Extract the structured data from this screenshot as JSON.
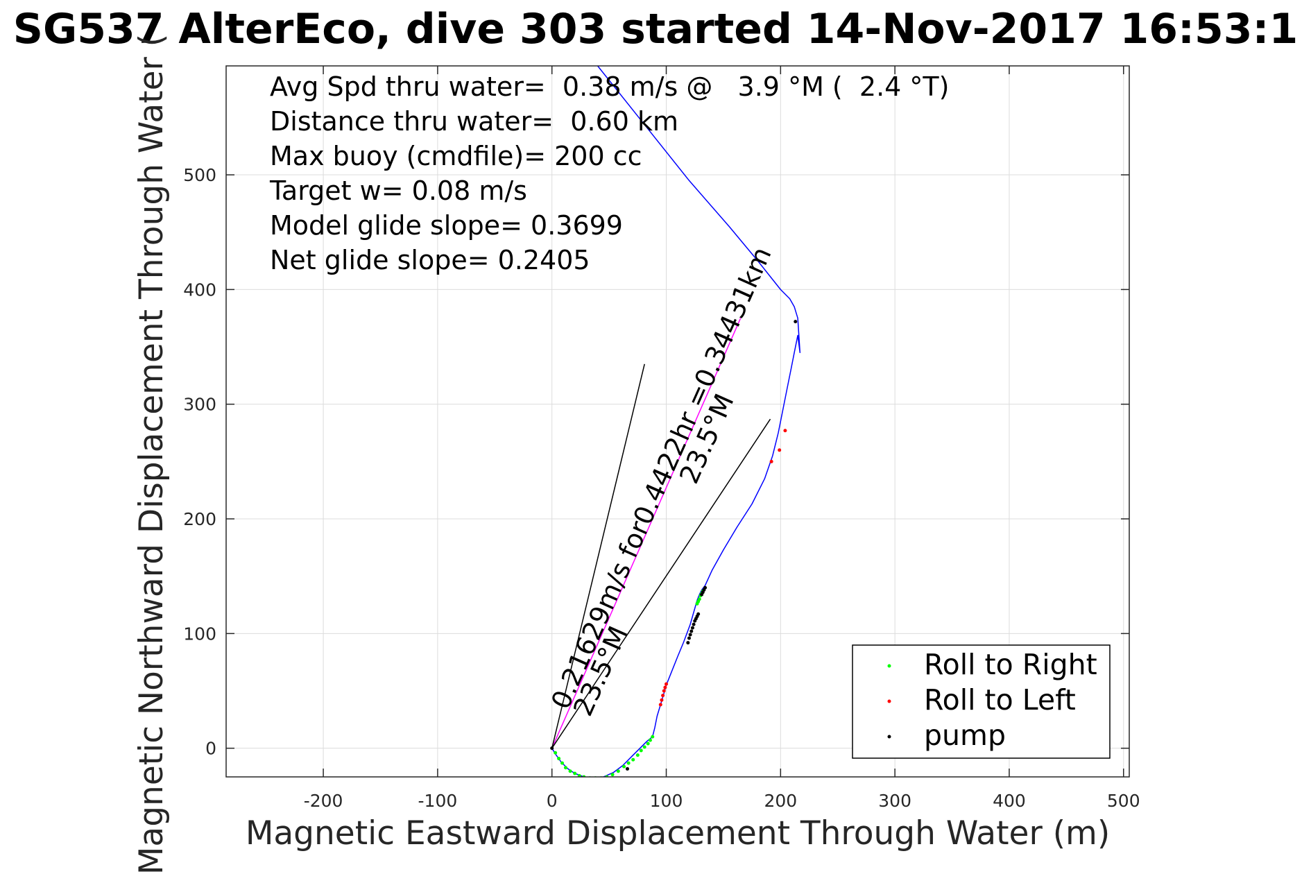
{
  "chart_data": {
    "type": "line",
    "title": "SG537 AlterEco, dive 303 started 14-Nov-2017 16:53:1",
    "xlabel": "Magnetic Eastward Displacement Through Water (m)",
    "ylabel": "Magnetic Northward Displacement Through Water (",
    "xlim": [
      -285,
      505
    ],
    "ylim": [
      -25,
      595
    ],
    "grid": true,
    "x_ticks": [
      "-200",
      "-100",
      "0",
      "100",
      "200",
      "300",
      "400",
      "500"
    ],
    "y_ticks": [
      "0",
      "100",
      "200",
      "300",
      "400",
      "500"
    ],
    "info_lines": [
      "Avg Spd thru water=  0.38 m/s @   3.9 °M (  2.4 °T)",
      "Distance thru water=  0.60 km",
      "Max buoy (cmdfile)= 200 cc",
      "Target w= 0.08 m/s",
      "Model glide slope= 0.3699",
      "Net glide slope= 0.2405"
    ],
    "annotations": [
      "0.21629m/s for0.4422hr =0.34431km",
      "23.5°M",
      "23.5°M"
    ],
    "track": {
      "color": "#0000ff",
      "x": [
        0,
        3,
        8,
        14,
        20,
        28,
        36,
        45,
        54,
        62,
        70,
        77,
        83,
        88,
        90,
        92,
        95,
        98,
        100,
        104,
        110,
        115,
        118,
        121,
        123,
        125,
        127,
        129,
        131,
        134,
        140,
        150,
        162,
        175,
        186,
        193,
        198,
        202,
        206,
        209,
        212,
        215,
        217,
        215,
        212,
        208,
        200,
        180,
        155,
        120,
        80,
        40
      ],
      "y": [
        0,
        -5,
        -12,
        -18,
        -22,
        -25,
        -26,
        -25,
        -21,
        -15,
        -7,
        0,
        6,
        10,
        18,
        28,
        38,
        48,
        55,
        65,
        80,
        92,
        100,
        108,
        115,
        122,
        129,
        134,
        138,
        142,
        155,
        173,
        193,
        213,
        235,
        255,
        275,
        295,
        315,
        330,
        345,
        360,
        345,
        375,
        385,
        392,
        400,
        425,
        455,
        495,
        545,
        595
      ]
    },
    "series": [
      {
        "name": "Roll to Right",
        "color": "#00ff00",
        "x": [
          3,
          6,
          9,
          12,
          16,
          20,
          24,
          28,
          33,
          38,
          43,
          48,
          53,
          58,
          63,
          67,
          71,
          75,
          78,
          81,
          84,
          86,
          88,
          127,
          128,
          129,
          130,
          131,
          132
        ],
        "y": [
          -4,
          -9,
          -13,
          -17,
          -20,
          -22,
          -24,
          -25,
          -26,
          -26,
          -26,
          -25,
          -23,
          -20,
          -16,
          -13,
          -10,
          -6,
          -2,
          1,
          4,
          7,
          10,
          126,
          128,
          130,
          133,
          135,
          137
        ]
      },
      {
        "name": "Roll to Left",
        "color": "#ff0000",
        "x": [
          95,
          96,
          97,
          98,
          99,
          100,
          192,
          199,
          204
        ],
        "y": [
          38,
          42,
          46,
          50,
          53,
          56,
          250,
          260,
          277
        ]
      },
      {
        "name": "pump",
        "color": "#000000",
        "x": [
          0,
          66,
          119,
          120,
          121,
          122,
          123,
          124,
          125,
          126,
          127,
          128,
          131,
          132,
          133,
          134,
          213
        ],
        "y": [
          0,
          -18,
          92,
          96,
          99,
          102,
          105,
          108,
          111,
          113,
          115,
          117,
          134,
          136,
          138,
          140,
          372
        ]
      }
    ],
    "reference_lines": [
      {
        "name": "current",
        "x": [
          0,
          165
        ],
        "y": [
          0,
          375
        ],
        "color": "#ff00ff"
      },
      {
        "name": "heading-left",
        "x": [
          0,
          81
        ],
        "y": [
          0,
          335
        ],
        "color": "#000000"
      },
      {
        "name": "heading-right",
        "x": [
          0,
          191
        ],
        "y": [
          0,
          287
        ],
        "color": "#000000"
      }
    ],
    "legend": [
      "Roll to Right",
      "Roll to Left",
      "pump"
    ],
    "legend_position": "bottom-right"
  }
}
